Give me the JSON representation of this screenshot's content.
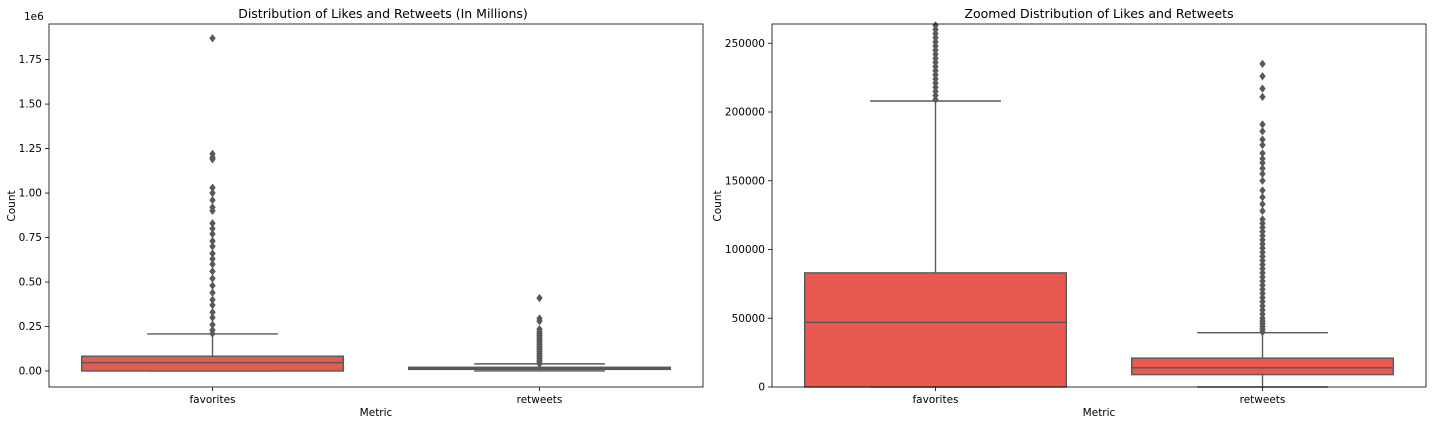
{
  "chart_data": [
    {
      "type": "box",
      "title": "Distribution of Likes and Retweets (In Millions)",
      "xlabel": "Metric",
      "ylabel": "Count",
      "offset_label": "1e6",
      "categories": [
        "favorites",
        "retweets"
      ],
      "ylim": [
        -0.09,
        1.95
      ],
      "yticks": [
        0.0,
        0.25,
        0.5,
        0.75,
        1.0,
        1.25,
        1.5,
        1.75
      ],
      "ytick_labels": [
        "0.00",
        "0.25",
        "0.50",
        "0.75",
        "1.00",
        "1.25",
        "1.50",
        "1.75"
      ],
      "box_color": "#e8594f",
      "line_color": "#595959",
      "boxes": [
        {
          "category": "favorites",
          "whisker_low": 0.0,
          "q1": 0.0,
          "median": 0.047,
          "q3": 0.083,
          "whisker_high": 0.208,
          "outliers": [
            0.21,
            0.23,
            0.26,
            0.3,
            0.33,
            0.37,
            0.4,
            0.44,
            0.48,
            0.52,
            0.56,
            0.6,
            0.63,
            0.66,
            0.7,
            0.73,
            0.77,
            0.8,
            0.83,
            0.9,
            0.92,
            0.96,
            1.0,
            1.03,
            1.19,
            1.2,
            1.22,
            1.87
          ]
        },
        {
          "category": "retweets",
          "whisker_low": 0.0,
          "q1": 0.009,
          "median": 0.014,
          "q3": 0.021,
          "whisker_high": 0.04,
          "outliers": [
            0.041,
            0.05,
            0.06,
            0.07,
            0.08,
            0.09,
            0.1,
            0.11,
            0.12,
            0.13,
            0.14,
            0.15,
            0.16,
            0.17,
            0.18,
            0.19,
            0.2,
            0.21,
            0.22,
            0.235,
            0.28,
            0.295,
            0.41
          ]
        }
      ]
    },
    {
      "type": "box",
      "title": "Zoomed Distribution of Likes and Retweets",
      "xlabel": "Metric",
      "ylabel": "Count",
      "categories": [
        "favorites",
        "retweets"
      ],
      "ylim": [
        0,
        264000
      ],
      "yticks": [
        0,
        50000,
        100000,
        150000,
        200000,
        250000
      ],
      "ytick_labels": [
        "0",
        "50000",
        "100000",
        "150000",
        "200000",
        "250000"
      ],
      "box_color": "#e8594f",
      "line_color": "#595959",
      "boxes": [
        {
          "category": "favorites",
          "whisker_low": 0,
          "q1": 0,
          "median": 47000,
          "q3": 83000,
          "whisker_high": 208000,
          "outliers": [
            209000,
            212000,
            215000,
            218000,
            221000,
            224000,
            227000,
            230000,
            233000,
            236000,
            239000,
            242000,
            245000,
            248000,
            251000,
            254000,
            257000,
            260000,
            263000
          ]
        },
        {
          "category": "retweets",
          "whisker_low": 0,
          "q1": 9000,
          "median": 14000,
          "q3": 21000,
          "whisker_high": 39500,
          "outliers": [
            40000,
            42000,
            44000,
            46000,
            48000,
            50000,
            53000,
            56000,
            59000,
            62000,
            65000,
            68000,
            71000,
            74000,
            77000,
            80000,
            83000,
            86000,
            89000,
            92000,
            95000,
            98000,
            101000,
            104000,
            107000,
            110000,
            113000,
            116000,
            119000,
            122000,
            128000,
            133000,
            138000,
            143000,
            150000,
            155000,
            159000,
            163000,
            166000,
            170000,
            176000,
            180000,
            186000,
            191000,
            211000,
            217000,
            226000,
            235000
          ]
        }
      ]
    }
  ]
}
